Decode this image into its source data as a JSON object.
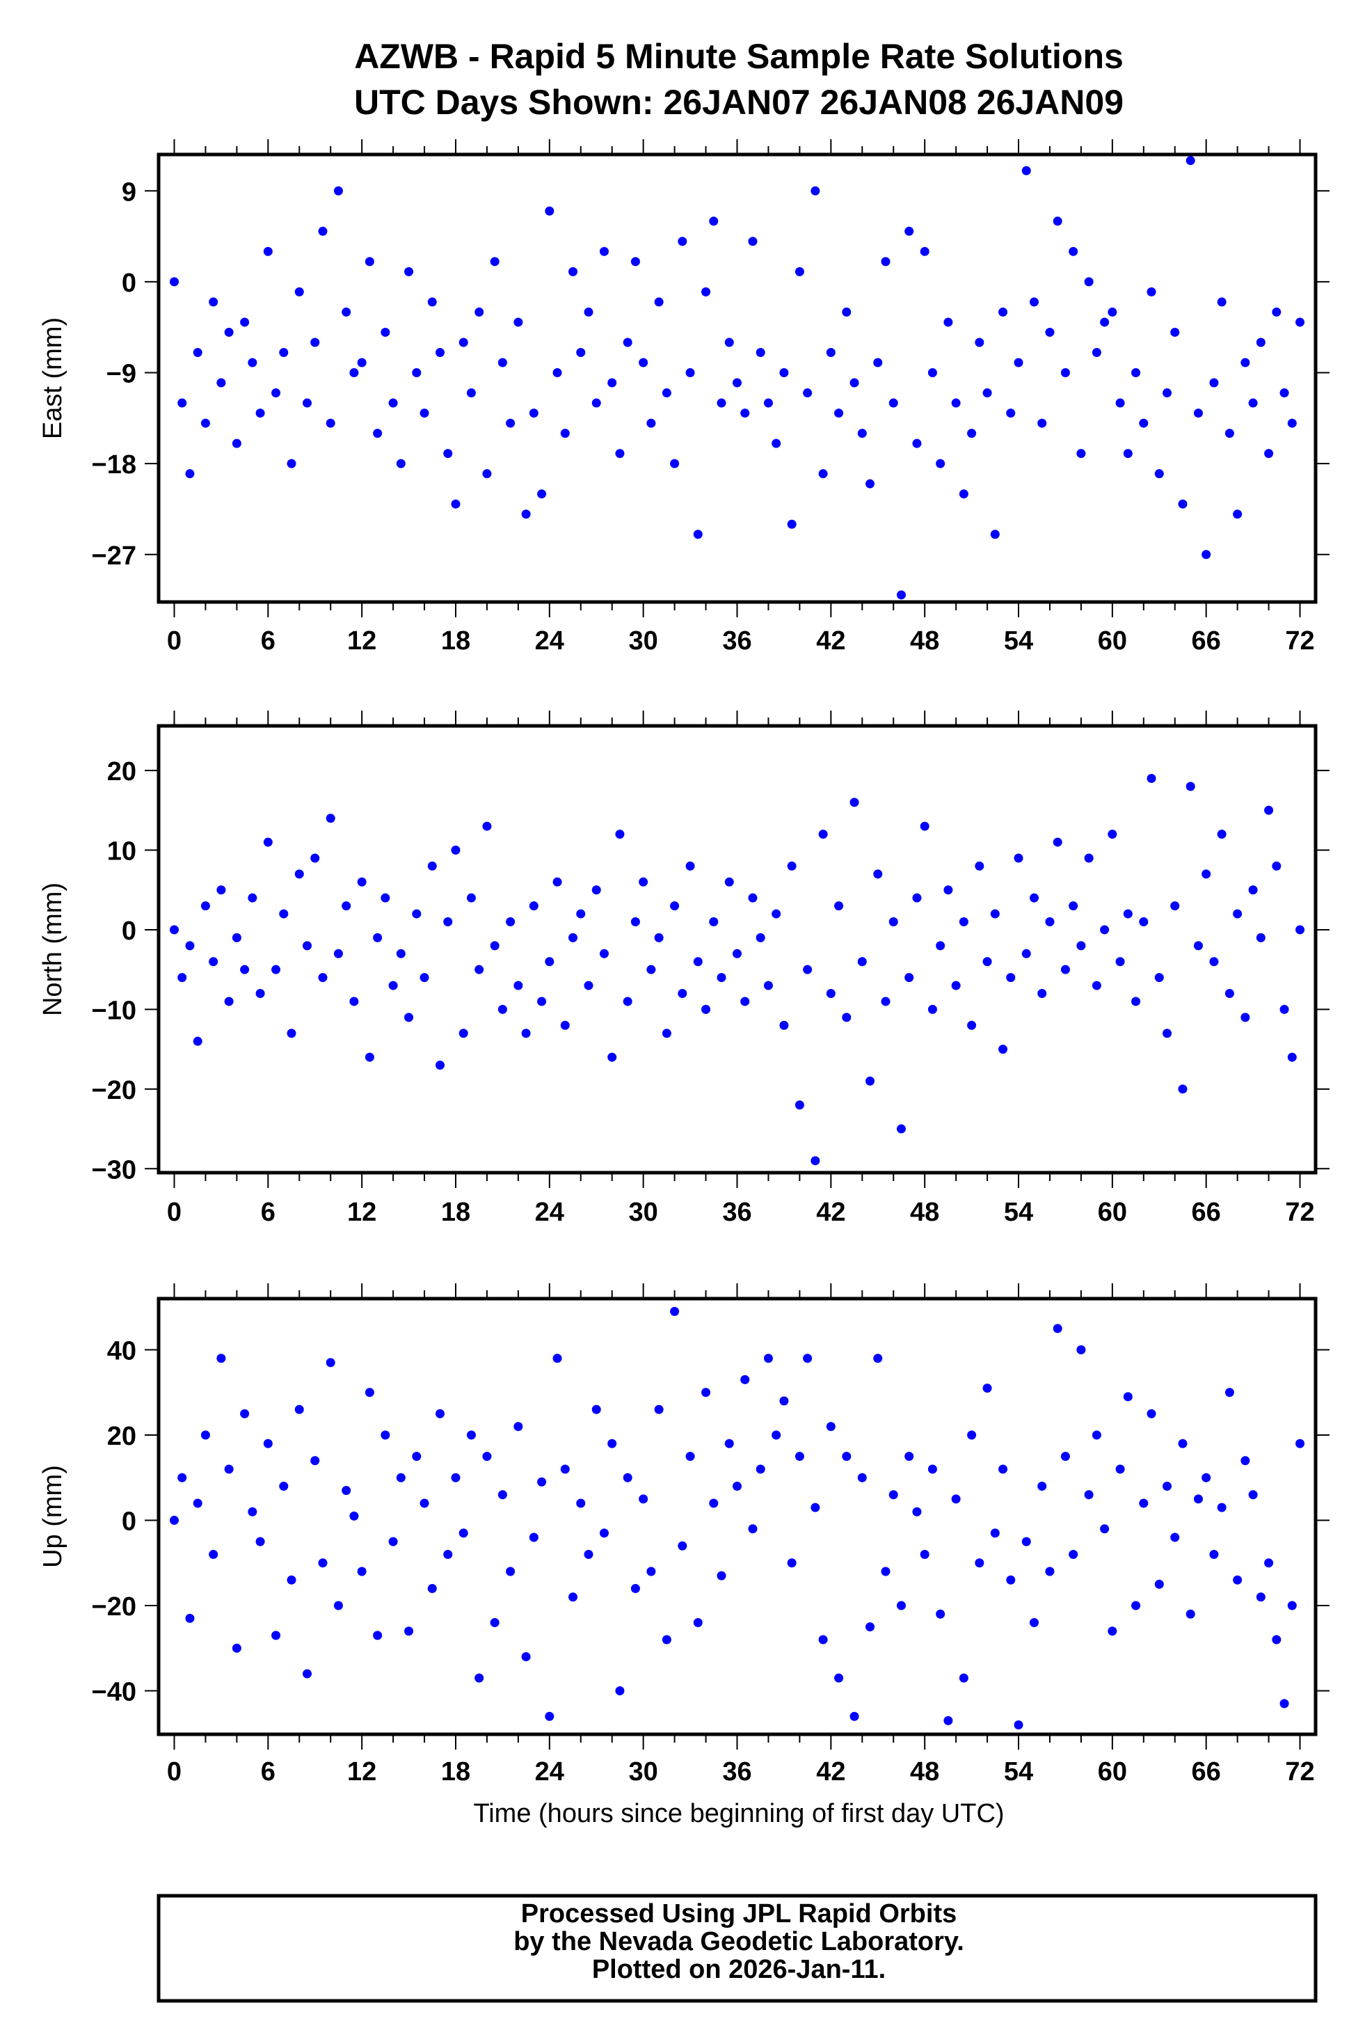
{
  "title_line1": "AZWB - Rapid 5 Minute Sample Rate Solutions",
  "title_line2": "UTC Days Shown:  26JAN07 26JAN08 26JAN09",
  "footer": {
    "line1": "Processed Using JPL Rapid Orbits",
    "line2": "by the Nevada Geodetic Laboratory.",
    "line3": "Plotted on 2026-Jan-11."
  },
  "chart_data": [
    {
      "type": "scatter",
      "name": "east",
      "ylabel": "East (mm)",
      "xlabel": "",
      "xlim": [
        -1,
        73
      ],
      "ylim": [
        -31.7,
        12.6
      ],
      "xticks": [
        0,
        6,
        12,
        18,
        24,
        30,
        36,
        42,
        48,
        54,
        60,
        66,
        72
      ],
      "yticks": [
        9,
        0,
        -9,
        -18,
        -27
      ],
      "ytick_labels": [
        "9",
        "0",
        "−9",
        "−18",
        "−27"
      ],
      "color": "#0000ff",
      "x_start": 0,
      "x_step": 0.5,
      "values": [
        0,
        -12,
        -19,
        -7,
        -14,
        -2,
        -10,
        -5,
        -16,
        -4,
        -8,
        -13,
        3,
        -11,
        -7,
        -18,
        -1,
        -12,
        -6,
        5,
        -14,
        9,
        -3,
        -9,
        -8,
        2,
        -15,
        -5,
        -12,
        -18,
        1,
        -9,
        -13,
        -2,
        -7,
        -17,
        -22,
        -6,
        -11,
        -3,
        -19,
        2,
        -8,
        -14,
        -4,
        -23,
        -13,
        -21,
        7,
        -9,
        -15,
        1,
        -7,
        -3,
        -12,
        3,
        -10,
        -17,
        -6,
        2,
        -8,
        -14,
        -2,
        -11,
        -18,
        4,
        -9,
        -25,
        -1,
        6,
        -12,
        -6,
        -10,
        -13,
        4,
        -7,
        -12,
        -16,
        -9,
        -24,
        1,
        -11,
        9,
        -19,
        -7,
        -13,
        -3,
        -10,
        -15,
        -20,
        -8,
        2,
        -12,
        -31,
        5,
        -16,
        3,
        -9,
        -18,
        -4,
        -12,
        -21,
        -15,
        -6,
        -11,
        -25,
        -3,
        -13,
        -8,
        11,
        -2,
        -14,
        -5,
        6,
        -9,
        3,
        -17,
        0,
        -7,
        -4,
        -3,
        -12,
        -17,
        -9,
        -14,
        -1,
        -19,
        -11,
        -5,
        -22,
        12,
        -13,
        -27,
        -10,
        -2,
        -15,
        -23,
        -8,
        -12,
        -6,
        -17,
        -3,
        -11,
        -14,
        -4
      ]
    },
    {
      "type": "scatter",
      "name": "north",
      "ylabel": "North (mm)",
      "xlabel": "",
      "xlim": [
        -1,
        73
      ],
      "ylim": [
        -30.5,
        25.6
      ],
      "xticks": [
        0,
        6,
        12,
        18,
        24,
        30,
        36,
        42,
        48,
        54,
        60,
        66,
        72
      ],
      "yticks": [
        20,
        10,
        0,
        -10,
        -20,
        -30
      ],
      "ytick_labels": [
        "20",
        "10",
        "0",
        "−10",
        "−20",
        "−30"
      ],
      "color": "#0000ff",
      "x_start": 0,
      "x_step": 0.5,
      "values": [
        0,
        -6,
        -2,
        -14,
        3,
        -4,
        5,
        -9,
        -1,
        -5,
        4,
        -8,
        11,
        -5,
        2,
        -13,
        7,
        -2,
        9,
        -6,
        14,
        -3,
        3,
        -9,
        6,
        -16,
        -1,
        4,
        -7,
        -3,
        -11,
        2,
        -6,
        8,
        -17,
        1,
        10,
        -13,
        4,
        -5,
        13,
        -2,
        -10,
        1,
        -7,
        -13,
        3,
        -9,
        -4,
        6,
        -12,
        -1,
        2,
        -7,
        5,
        -3,
        -16,
        12,
        -9,
        1,
        6,
        -5,
        -1,
        -13,
        3,
        -8,
        8,
        -4,
        -10,
        1,
        -6,
        6,
        -3,
        -9,
        4,
        -1,
        -7,
        2,
        -12,
        8,
        -22,
        -5,
        -29,
        12,
        -8,
        3,
        -11,
        16,
        -4,
        -19,
        7,
        -9,
        1,
        -25,
        -6,
        4,
        13,
        -10,
        -2,
        5,
        -7,
        1,
        -12,
        8,
        -4,
        2,
        -15,
        -6,
        9,
        -3,
        4,
        -8,
        1,
        11,
        -5,
        3,
        -2,
        9,
        -7,
        0,
        12,
        -4,
        2,
        -9,
        1,
        19,
        -6,
        -13,
        3,
        -20,
        18,
        -2,
        7,
        -4,
        12,
        -8,
        2,
        -11,
        5,
        -1,
        15,
        8,
        -10,
        -16,
        0
      ]
    },
    {
      "type": "scatter",
      "name": "up",
      "ylabel": "Up (mm)",
      "xlabel": "Time (hours since beginning of first day UTC)",
      "xlim": [
        -1,
        73
      ],
      "ylim": [
        -50.2,
        52
      ],
      "xticks": [
        0,
        6,
        12,
        18,
        24,
        30,
        36,
        42,
        48,
        54,
        60,
        66,
        72
      ],
      "yticks": [
        40,
        20,
        0,
        -20,
        -40
      ],
      "ytick_labels": [
        "40",
        "20",
        "0",
        "−20",
        "−40"
      ],
      "color": "#0000ff",
      "x_start": 0,
      "x_step": 0.5,
      "values": [
        0,
        10,
        -23,
        4,
        20,
        -8,
        38,
        12,
        -30,
        25,
        2,
        -5,
        18,
        -27,
        8,
        -14,
        26,
        -36,
        14,
        -10,
        37,
        -20,
        7,
        1,
        -12,
        30,
        -27,
        20,
        -5,
        10,
        -26,
        15,
        4,
        -16,
        25,
        -8,
        10,
        -3,
        20,
        -37,
        15,
        -24,
        6,
        -12,
        22,
        -32,
        -4,
        9,
        -46,
        38,
        12,
        -18,
        4,
        -8,
        26,
        -3,
        18,
        -40,
        10,
        -16,
        5,
        -12,
        26,
        -28,
        49,
        -6,
        15,
        -24,
        30,
        4,
        -13,
        18,
        8,
        33,
        -2,
        12,
        38,
        20,
        28,
        -10,
        15,
        38,
        3,
        -28,
        22,
        -37,
        15,
        -46,
        10,
        -25,
        38,
        -12,
        6,
        -20,
        15,
        2,
        -8,
        12,
        -22,
        -47,
        5,
        -37,
        20,
        -10,
        31,
        -3,
        12,
        -14,
        -48,
        -5,
        -24,
        8,
        -12,
        45,
        15,
        -8,
        40,
        6,
        20,
        -2,
        -26,
        12,
        29,
        -20,
        4,
        25,
        -15,
        8,
        -4,
        18,
        -22,
        5,
        10,
        -8,
        3,
        30,
        -14,
        14,
        6,
        -18,
        -10,
        -28,
        -43,
        -20,
        18
      ]
    }
  ]
}
